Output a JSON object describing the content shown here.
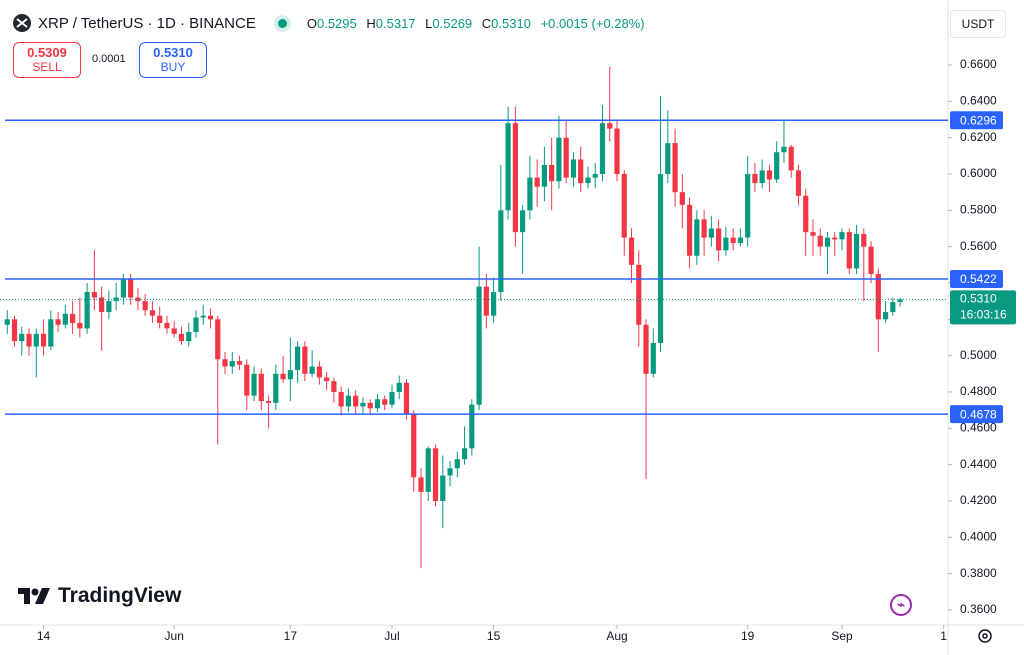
{
  "header": {
    "symbol": "XRP / TetherUS · 1D · BINANCE",
    "ohlc": [
      {
        "label": "O",
        "value": "0.5295"
      },
      {
        "label": "H",
        "value": "0.5317"
      },
      {
        "label": "L",
        "value": "0.5269"
      },
      {
        "label": "C",
        "value": "0.5310"
      }
    ],
    "change": "+0.0015 (+0.28%)",
    "sell": {
      "price": "0.5309",
      "label": "SELL"
    },
    "spread": "0.0001",
    "buy": {
      "price": "0.5310",
      "label": "BUY"
    },
    "currency": "USDT"
  },
  "logo": "TradingView",
  "chart_data": {
    "type": "candlestick",
    "open": [
      0.517,
      0.52,
      0.508,
      0.512,
      0.505,
      0.512,
      0.505,
      0.52,
      0.517,
      0.523,
      0.518,
      0.515,
      0.535,
      0.532,
      0.524,
      0.53,
      0.532,
      0.542,
      0.532,
      0.53,
      0.525,
      0.522,
      0.518,
      0.515,
      0.512,
      0.508,
      0.513,
      0.521,
      0.522,
      0.52,
      0.498,
      0.494,
      0.497,
      0.495,
      0.478,
      0.49,
      0.475,
      0.474,
      0.49,
      0.487,
      0.492,
      0.505,
      0.49,
      0.494,
      0.488,
      0.486,
      0.48,
      0.472,
      0.478,
      0.472,
      0.474,
      0.471,
      0.476,
      0.473,
      0.48,
      0.485,
      0.468,
      0.433,
      0.425,
      0.449,
      0.42,
      0.434,
      0.438,
      0.443,
      0.449,
      0.473,
      0.538,
      0.522,
      0.535,
      0.58,
      0.628,
      0.568,
      0.58,
      0.598,
      0.593,
      0.605,
      0.596,
      0.62,
      0.598,
      0.608,
      0.595,
      0.598,
      0.6,
      0.628,
      0.625,
      0.6,
      0.565,
      0.55,
      0.517,
      0.49,
      0.507,
      0.6,
      0.617,
      0.59,
      0.583,
      0.555,
      0.575,
      0.565,
      0.57,
      0.558,
      0.565,
      0.562,
      0.565,
      0.6,
      0.595,
      0.602,
      0.597,
      0.612,
      0.615,
      0.602,
      0.588,
      0.568,
      0.566,
      0.56,
      0.565,
      0.564,
      0.568,
      0.548,
      0.567,
      0.56,
      0.545,
      0.52,
      0.524,
      0.5295
    ],
    "high": [
      0.525,
      0.522,
      0.516,
      0.515,
      0.515,
      0.52,
      0.525,
      0.524,
      0.528,
      0.53,
      0.532,
      0.54,
      0.558,
      0.538,
      0.536,
      0.54,
      0.545,
      0.545,
      0.537,
      0.534,
      0.53,
      0.527,
      0.522,
      0.519,
      0.516,
      0.518,
      0.525,
      0.528,
      0.526,
      0.522,
      0.502,
      0.502,
      0.5,
      0.498,
      0.494,
      0.493,
      0.478,
      0.495,
      0.5,
      0.51,
      0.508,
      0.508,
      0.503,
      0.497,
      0.491,
      0.488,
      0.483,
      0.482,
      0.481,
      0.477,
      0.476,
      0.479,
      0.478,
      0.484,
      0.489,
      0.487,
      0.47,
      0.438,
      0.45,
      0.451,
      0.445,
      0.442,
      0.447,
      0.461,
      0.476,
      0.56,
      0.545,
      0.543,
      0.605,
      0.637,
      0.637,
      0.583,
      0.61,
      0.608,
      0.615,
      0.62,
      0.632,
      0.63,
      0.612,
      0.615,
      0.604,
      0.606,
      0.638,
      0.659,
      0.63,
      0.602,
      0.57,
      0.558,
      0.52,
      0.515,
      0.643,
      0.635,
      0.625,
      0.6,
      0.587,
      0.58,
      0.58,
      0.577,
      0.575,
      0.571,
      0.57,
      0.57,
      0.61,
      0.606,
      0.608,
      0.605,
      0.618,
      0.63,
      0.616,
      0.605,
      0.592,
      0.575,
      0.57,
      0.568,
      0.568,
      0.57,
      0.57,
      0.572,
      0.57,
      0.563,
      0.548,
      0.53,
      0.532,
      0.5317
    ],
    "low": [
      0.512,
      0.505,
      0.5,
      0.5,
      0.488,
      0.5,
      0.503,
      0.513,
      0.515,
      0.512,
      0.51,
      0.512,
      0.525,
      0.503,
      0.52,
      0.525,
      0.528,
      0.528,
      0.525,
      0.522,
      0.518,
      0.515,
      0.512,
      0.51,
      0.506,
      0.505,
      0.51,
      0.517,
      0.515,
      0.451,
      0.49,
      0.49,
      0.492,
      0.47,
      0.475,
      0.47,
      0.46,
      0.47,
      0.485,
      0.475,
      0.485,
      0.486,
      0.488,
      0.484,
      0.481,
      0.474,
      0.467,
      0.469,
      0.468,
      0.468,
      0.468,
      0.469,
      0.47,
      0.471,
      0.476,
      0.465,
      0.425,
      0.383,
      0.42,
      0.417,
      0.405,
      0.428,
      0.433,
      0.44,
      0.445,
      0.47,
      0.515,
      0.518,
      0.53,
      0.575,
      0.56,
      0.545,
      0.575,
      0.582,
      0.585,
      0.58,
      0.592,
      0.595,
      0.593,
      0.59,
      0.592,
      0.592,
      0.596,
      0.618,
      0.596,
      0.555,
      0.54,
      0.505,
      0.432,
      0.488,
      0.502,
      0.595,
      0.582,
      0.57,
      0.548,
      0.55,
      0.555,
      0.56,
      0.552,
      0.555,
      0.558,
      0.56,
      0.56,
      0.59,
      0.592,
      0.59,
      0.595,
      0.606,
      0.598,
      0.583,
      0.555,
      0.555,
      0.555,
      0.545,
      0.555,
      0.558,
      0.545,
      0.545,
      0.53,
      0.54,
      0.502,
      0.518,
      0.522,
      0.5269
    ],
    "close": [
      0.52,
      0.508,
      0.512,
      0.505,
      0.512,
      0.505,
      0.52,
      0.517,
      0.523,
      0.518,
      0.515,
      0.535,
      0.532,
      0.524,
      0.53,
      0.532,
      0.542,
      0.532,
      0.53,
      0.525,
      0.522,
      0.518,
      0.515,
      0.512,
      0.508,
      0.513,
      0.521,
      0.522,
      0.52,
      0.498,
      0.494,
      0.497,
      0.495,
      0.478,
      0.49,
      0.475,
      0.474,
      0.49,
      0.487,
      0.492,
      0.505,
      0.49,
      0.494,
      0.488,
      0.486,
      0.48,
      0.472,
      0.478,
      0.472,
      0.474,
      0.471,
      0.476,
      0.473,
      0.48,
      0.485,
      0.468,
      0.433,
      0.425,
      0.449,
      0.42,
      0.434,
      0.438,
      0.443,
      0.449,
      0.473,
      0.538,
      0.522,
      0.535,
      0.58,
      0.628,
      0.568,
      0.58,
      0.598,
      0.593,
      0.605,
      0.596,
      0.62,
      0.598,
      0.608,
      0.595,
      0.598,
      0.6,
      0.628,
      0.625,
      0.6,
      0.565,
      0.55,
      0.517,
      0.49,
      0.507,
      0.6,
      0.617,
      0.59,
      0.583,
      0.555,
      0.575,
      0.565,
      0.57,
      0.558,
      0.565,
      0.562,
      0.565,
      0.6,
      0.595,
      0.602,
      0.597,
      0.612,
      0.615,
      0.602,
      0.588,
      0.568,
      0.566,
      0.56,
      0.565,
      0.564,
      0.568,
      0.548,
      0.567,
      0.56,
      0.545,
      0.52,
      0.524,
      0.5295,
      0.531
    ],
    "up_color": "#089981",
    "down_color": "#f23645",
    "xlim": [
      -1,
      129.6
    ],
    "xticks": [
      {
        "value": 5,
        "label": "14"
      },
      {
        "value": 23,
        "label": "Jun"
      },
      {
        "value": 39,
        "label": "17"
      },
      {
        "value": 53,
        "label": "Jul"
      },
      {
        "value": 67,
        "label": "15"
      },
      {
        "value": 84,
        "label": "Aug"
      },
      {
        "value": 102,
        "label": "19"
      },
      {
        "value": 115,
        "label": "Sep"
      },
      {
        "value": 129,
        "label": "1"
      }
    ],
    "ylim": [
      0.3517,
      0.6958
    ],
    "yticks": [
      {
        "value": 0.36,
        "label": "0.3600"
      },
      {
        "value": 0.38,
        "label": "0.3800"
      },
      {
        "value": 0.4,
        "label": "0.4000"
      },
      {
        "value": 0.42,
        "label": "0.4200"
      },
      {
        "value": 0.44,
        "label": "0.4400"
      },
      {
        "value": 0.46,
        "label": "0.4600"
      },
      {
        "value": 0.48,
        "label": "0.4800"
      },
      {
        "value": 0.5,
        "label": "0.5000"
      },
      {
        "value": 0.52,
        "label": "0.5200"
      },
      {
        "value": 0.54,
        "label": "0.5400"
      },
      {
        "value": 0.56,
        "label": "0.5600"
      },
      {
        "value": 0.58,
        "label": "0.5800"
      },
      {
        "value": 0.6,
        "label": "0.6000"
      },
      {
        "value": 0.62,
        "label": "0.6200"
      },
      {
        "value": 0.64,
        "label": "0.6400"
      },
      {
        "value": 0.66,
        "label": "0.6600"
      }
    ],
    "grid": false,
    "hlines": [
      0.6296,
      0.5422,
      0.4678
    ],
    "hline_color": "#2962ff",
    "last_price_line": true,
    "last_price_label": "0.5310",
    "countdown": "16:03:16"
  }
}
